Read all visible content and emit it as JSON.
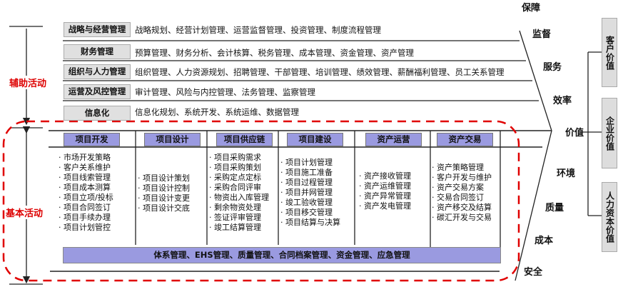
{
  "left_labels": {
    "support": "辅助活动",
    "primary": "基本活动"
  },
  "support": [
    {
      "label": "战略与经营管理",
      "text": "战略规划、经营计划管理、运营监督管理、投资管理、制度流程管理"
    },
    {
      "label": "财务管理",
      "text": "预算管理、财务分析、会计核算、税务管理、成本管理、资金管理、资产管理"
    },
    {
      "label": "组织与人力管理",
      "text": "组织管理、人力资源规划、招聘管理、干部管理、培训管理、绩效管理、薪酬福利管理、员工关系管理"
    },
    {
      "label": "运营及风控管理",
      "text": "审计管理、风险与内控管理、法务管理、监察管理"
    },
    {
      "label": "信息化",
      "text": "信息化规划、系统开发、系统运维、数据管理"
    }
  ],
  "primary": [
    {
      "header": "项目开发",
      "items": [
        "市场开发策略",
        "客户关系维护",
        "项目线索管理",
        "项目成本测算",
        "项目立项/投标",
        "项目合同签订",
        "项目手续办理",
        "项目计划管控"
      ]
    },
    {
      "header": "项目设计",
      "items": [
        "项目设计策划",
        "项目设计控制",
        "项目设计变更",
        "项目设计交底"
      ]
    },
    {
      "header": "项目供应链",
      "items": [
        "项目采购需求",
        "项目采购策划",
        "采购定点定标",
        "采购合同评审",
        "物资出入库管理",
        "剩余物资处理",
        "签证评审管理",
        "竣工结算管理"
      ]
    },
    {
      "header": "项目建设",
      "items": [
        "项目计划管理",
        "项目施工准备",
        "项目过程管理",
        "项目并网管理",
        "竣工验收管理",
        "项目移交管理",
        "项目结算与决算"
      ]
    },
    {
      "header": "资产运营",
      "items": [
        "资产接收管理",
        "资产运维管理",
        "资产异常管理",
        "资产发电管理"
      ]
    },
    {
      "header": "资产交易",
      "items": [
        "资产策略管理",
        "客户开发与维护",
        "资产交易方案",
        "交易合同签订",
        "资产移交及结算",
        "碳汇开发与交易"
      ]
    }
  ],
  "bottom_bar": "体系管理、EHS管理、质量管理、合同档案管理、资金管理、应急管理",
  "arrow_labels": [
    "保障",
    "监督",
    "服务",
    "效率",
    "价值",
    "环境",
    "质量",
    "成本",
    "安全"
  ],
  "value_boxes": [
    "客户价值",
    "企业价值",
    "人力资本价值"
  ],
  "colors": {
    "header_fill": "#9a9ae0",
    "label_fill": "#e0e0e0",
    "dashed_border": "#e00000",
    "activity_label": "#d00000"
  }
}
